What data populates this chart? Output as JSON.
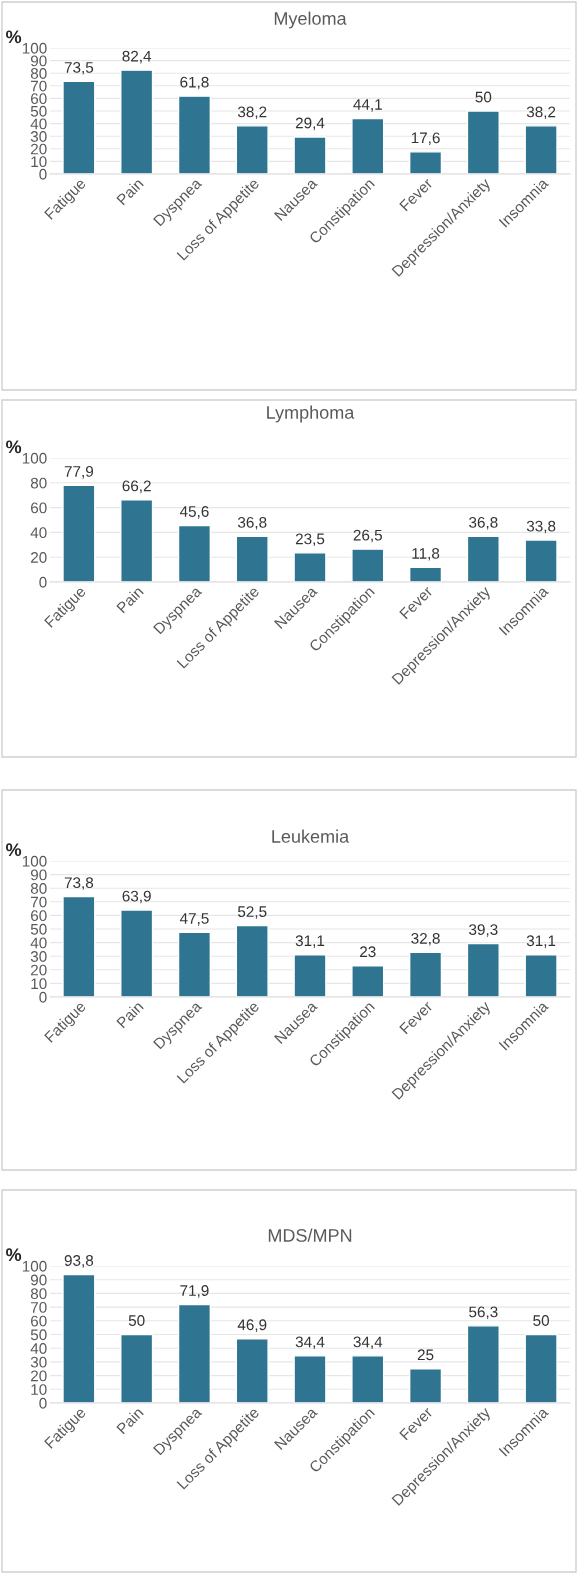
{
  "chart_data": [
    {
      "type": "bar",
      "title": "Myeloma",
      "ylabel": "%",
      "categories": [
        "Fatigue",
        "Pain",
        "Dyspnea",
        "Loss of Appetite",
        "Nausea",
        "Constipation",
        "Fever",
        "Depression/Anxiety",
        "Insomnia"
      ],
      "values": [
        73.5,
        82.4,
        61.8,
        38.2,
        29.4,
        44.1,
        17.6,
        50,
        38.2
      ],
      "value_labels": [
        "73,5",
        "82,4",
        "61,8",
        "38,2",
        "29,4",
        "44,1",
        "17,6",
        "50",
        "38,2"
      ],
      "color": "#2f7591",
      "ylim": [
        0,
        100
      ],
      "yticks": [
        0,
        10,
        20,
        30,
        40,
        50,
        60,
        70,
        80,
        90,
        100
      ],
      "grid": "y",
      "legend": false
    },
    {
      "type": "bar",
      "title": "Lymphoma",
      "ylabel": "%",
      "categories": [
        "Fatigue",
        "Pain",
        "Dyspnea",
        "Loss of Appetite",
        "Nausea",
        "Constipation",
        "Fever",
        "Depression/Anxiety",
        "Insomnia"
      ],
      "values": [
        77.9,
        66.2,
        45.6,
        36.8,
        23.5,
        26.5,
        11.8,
        36.8,
        33.8
      ],
      "value_labels": [
        "77,9",
        "66,2",
        "45,6",
        "36,8",
        "23,5",
        "26,5",
        "11,8",
        "36,8",
        "33,8"
      ],
      "color": "#2f7591",
      "ylim": [
        0,
        100
      ],
      "yticks": [
        0,
        20,
        40,
        60,
        80,
        100
      ],
      "grid": "y",
      "legend": false
    },
    {
      "type": "bar",
      "title": "Leukemia",
      "ylabel": "%",
      "categories": [
        "Fatigue",
        "Pain",
        "Dyspnea",
        "Loss of Appetite",
        "Nausea",
        "Constipation",
        "Fever",
        "Depression/Anxiety",
        "Insomnia"
      ],
      "values": [
        73.8,
        63.9,
        47.5,
        52.5,
        31.1,
        23,
        32.8,
        39.3,
        31.1
      ],
      "value_labels": [
        "73,8",
        "63,9",
        "47,5",
        "52,5",
        "31,1",
        "23",
        "32,8",
        "39,3",
        "31,1"
      ],
      "color": "#2f7591",
      "ylim": [
        0,
        100
      ],
      "yticks": [
        0,
        10,
        20,
        30,
        40,
        50,
        60,
        70,
        80,
        90,
        100
      ],
      "grid": "y",
      "legend": false
    },
    {
      "type": "bar",
      "title": "MDS/MPN",
      "ylabel": "%",
      "categories": [
        "Fatigue",
        "Pain",
        "Dyspnea",
        "Loss of Appetite",
        "Nausea",
        "Constipation",
        "Fever",
        "Depression/Anxiety",
        "Insomnia"
      ],
      "values": [
        93.8,
        50,
        71.9,
        46.9,
        34.4,
        34.4,
        25,
        56.3,
        50
      ],
      "value_labels": [
        "93,8",
        "50",
        "71,9",
        "46,9",
        "34,4",
        "34,4",
        "25",
        "56,3",
        "50"
      ],
      "color": "#2f7591",
      "ylim": [
        0,
        100
      ],
      "yticks": [
        0,
        10,
        20,
        30,
        40,
        50,
        60,
        70,
        80,
        90,
        100
      ],
      "grid": "y",
      "legend": false
    }
  ]
}
